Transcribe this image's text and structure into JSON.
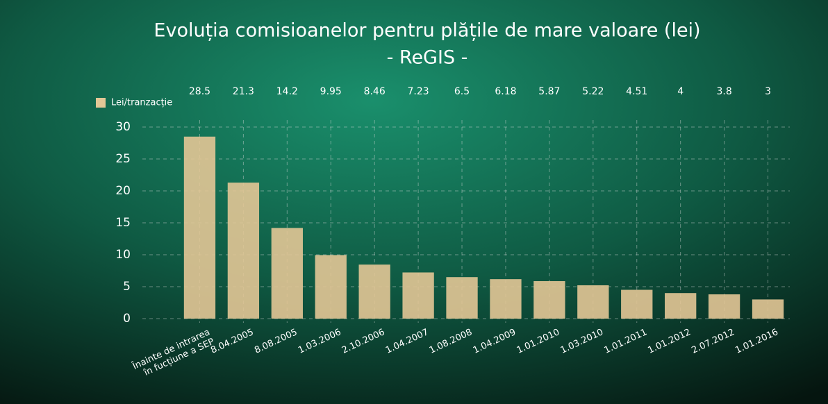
{
  "chart_data": {
    "type": "bar",
    "title": "Evoluția comisioanelor pentru plățile de mare valoare (lei)",
    "subtitle": "- ReGIS -",
    "categories": [
      "Înainte de intrarea\nîn fucțiune a SEP",
      "8.04.2005",
      "8.08.2005",
      "1.03.2006",
      "2.10.2006",
      "1.04.2007",
      "1.08.2008",
      "1.04.2009",
      "1.01.2010",
      "1.03.2010",
      "1.01.2011",
      "1.01.2012",
      "2.07.2012",
      "1.01.2016"
    ],
    "series": [
      {
        "name": "Lei/tranzacție",
        "color": "#e3c796",
        "values": [
          28.5,
          21.3,
          14.2,
          9.95,
          8.46,
          7.23,
          6.5,
          6.18,
          5.87,
          5.22,
          4.51,
          4,
          3.8,
          3
        ]
      }
    ],
    "ylim": [
      0,
      30
    ],
    "yticks": [
      0,
      5,
      10,
      15,
      20,
      25,
      30
    ],
    "grid": true,
    "legend": "top-left"
  }
}
